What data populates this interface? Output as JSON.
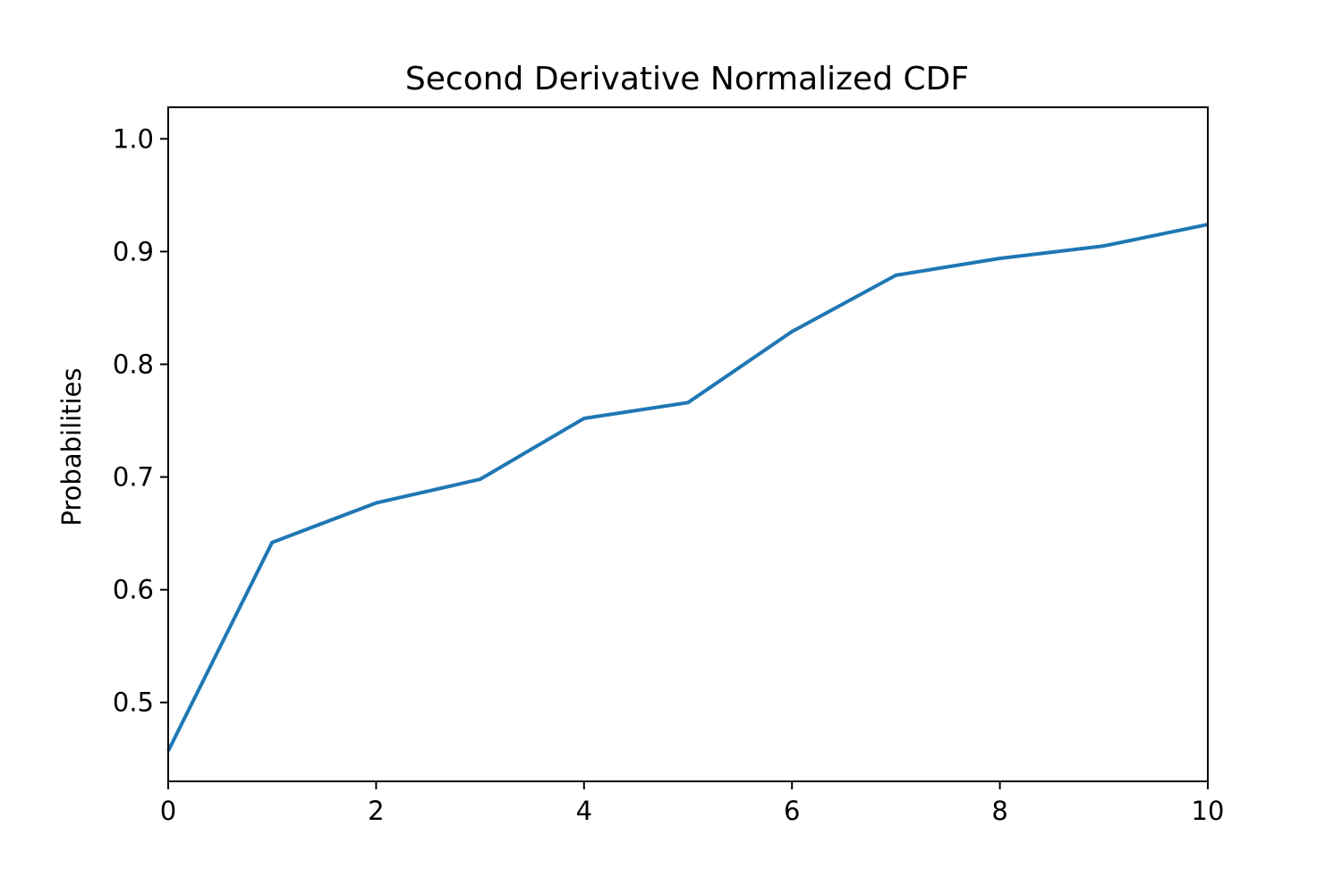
{
  "chart_data": {
    "type": "line",
    "title": "Second Derivative Normalized CDF",
    "xlabel": "",
    "ylabel": "Probabilities",
    "xlim": [
      0,
      10
    ],
    "ylim": [
      0.43,
      1.028
    ],
    "xticks": [
      0,
      2,
      4,
      6,
      8,
      10
    ],
    "xtick_labels": [
      "0",
      "2",
      "4",
      "6",
      "8",
      "10"
    ],
    "yticks": [
      0.5,
      0.6,
      0.7,
      0.8,
      0.9,
      1.0
    ],
    "ytick_labels": [
      "0.5",
      "0.6",
      "0.7",
      "0.8",
      "0.9",
      "1.0"
    ],
    "grid": false,
    "series": [
      {
        "color": "#1f77b4",
        "x": [
          0,
          1,
          2,
          3,
          4,
          5,
          6,
          7,
          8,
          9,
          10
        ],
        "y": [
          0.457,
          0.642,
          0.677,
          0.698,
          0.752,
          0.766,
          0.829,
          0.879,
          0.894,
          0.905,
          0.924
        ]
      }
    ]
  }
}
